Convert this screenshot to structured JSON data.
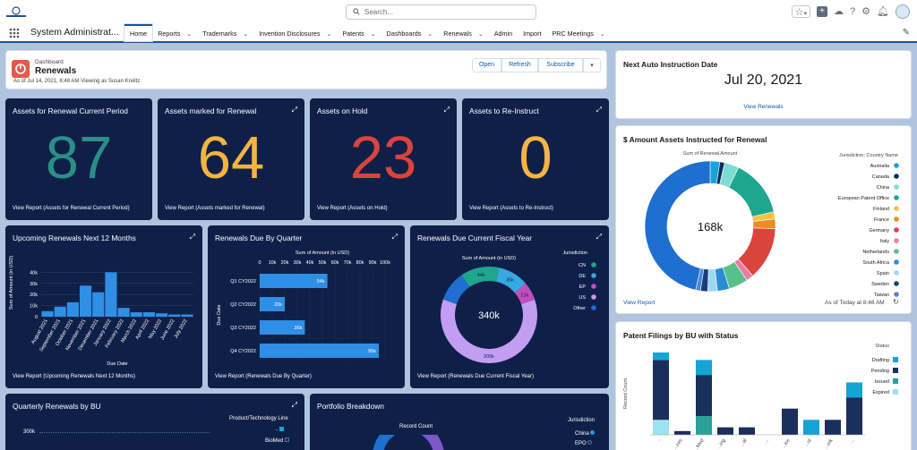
{
  "topbar": {
    "search_placeholder": "Search..."
  },
  "nav": {
    "app_name": "System Administrat...",
    "items": [
      {
        "label": "Home",
        "active": true,
        "chevron": false
      },
      {
        "label": "Reports",
        "chevron": true
      },
      {
        "label": "Trademarks",
        "chevron": true
      },
      {
        "label": "Invention Disclosures",
        "chevron": true
      },
      {
        "label": "Patents",
        "chevron": true
      },
      {
        "label": "Dashboards",
        "chevron": true
      },
      {
        "label": "Renewals",
        "chevron": true
      },
      {
        "label": "Admin",
        "chevron": false
      },
      {
        "label": "Import",
        "chevron": false
      },
      {
        "label": "PRC Meetings",
        "chevron": true
      }
    ]
  },
  "dashboard": {
    "type_label": "Dashboard",
    "title": "Renewals",
    "subtitle": "As of Jul 14, 2021, 8:48 AM·Viewing as Susan Kreiltz",
    "open": "Open",
    "refresh": "Refresh",
    "subscribe": "Subscribe"
  },
  "metrics": [
    {
      "title": "Assets for Renewal Current Period",
      "value": "87",
      "color": "#2a8f86",
      "link": "View Report (Assets for Renewal Current Period)"
    },
    {
      "title": "Assets marked for Renewal",
      "value": "64",
      "color": "#f5b342",
      "link": "View Report (Assets marked for Renewal)"
    },
    {
      "title": "Assets on Hold",
      "value": "23",
      "color": "#d9443d",
      "link": "View Report (Assets on Hold)"
    },
    {
      "title": "Assets to Re-Instruct",
      "value": "0",
      "color": "#f5b342",
      "link": "View Report (Assets to Re-Instruct)"
    }
  ],
  "next_auto": {
    "title": "Next Auto Instruction Date",
    "date": "Jul 20, 2021",
    "link": "View Renewals"
  },
  "amount_chart": {
    "title": "$ Amount Assets Instructed for Renewal",
    "link": "View Report",
    "asof": "As of Today at 8:48 AM"
  },
  "upcoming": {
    "title": "Upcoming Renewals Next 12 Months",
    "link": "View Report (Upcoming Renewals Next 12 Months)"
  },
  "by_quarter": {
    "title": "Renewals Due By Quarter",
    "link": "View Report (Renewals Due By Quarter)"
  },
  "fiscal": {
    "title": "Renewals Due Current Fiscal Year",
    "link": "View Report (Renewals Due Current Fiscal Year)"
  },
  "quarterly_bu": {
    "title": "Quarterly Renewals by BU",
    "legend_title": "Product/Technology Line",
    "legend": [
      "-",
      "BioMed"
    ],
    "y_top": "300k"
  },
  "portfolio": {
    "title": "Portfolio Breakdown",
    "subtitle": "Record Count",
    "legend_title": "Jurisdiction",
    "legend": [
      "China",
      "EPO"
    ]
  },
  "patent_filings": {
    "title": "Patent Filings by BU with Status"
  },
  "chart_data": [
    {
      "type": "bar",
      "title": "Upcoming Renewals Next 12 Months",
      "xlabel": "Due Date",
      "ylabel": "Sum of Amount (in USD)",
      "ylim": [
        0,
        50000
      ],
      "yticks": [
        "0",
        "10k",
        "20k",
        "30k",
        "40k"
      ],
      "categories": [
        "August 2021",
        "September 2021",
        "October 2021",
        "November 2021",
        "December 2021",
        "January 2022",
        "February 2022",
        "March 2022",
        "April 2022",
        "May 2022",
        "June 2022",
        "July 2022"
      ],
      "values": [
        5000,
        9000,
        13000,
        28000,
        22000,
        40000,
        8000,
        4000,
        4000,
        3000,
        2000,
        2000
      ]
    },
    {
      "type": "bar",
      "orientation": "horizontal",
      "title": "Renewals Due By Quarter",
      "xlabel": "Sum of Amount (in USD)",
      "ylabel": "Due Date",
      "xlim": [
        0,
        100000
      ],
      "xticks": [
        "0",
        "10k",
        "20k",
        "30k",
        "40k",
        "50k",
        "60k",
        "70k",
        "80k",
        "90k",
        "100k"
      ],
      "categories": [
        "Q1 CY2022",
        "Q2 CY2022",
        "Q3 CY2022",
        "Q4 CY2022"
      ],
      "values": [
        54000,
        20000,
        36000,
        95000
      ],
      "labels": [
        "54k",
        "20k",
        "36k",
        "95k"
      ]
    },
    {
      "type": "pie",
      "donut": true,
      "title": "Sum of Amount (in USD)",
      "center": "340k",
      "legend_title": "Jurisdiction",
      "slices": [
        {
          "name": "CN",
          "value": 44000,
          "label": "44k",
          "color": "#1ea68e"
        },
        {
          "name": "DE",
          "value": 35000,
          "label": "35k",
          "color": "#38a8e0"
        },
        {
          "name": "EP",
          "value": 21000,
          "label": "21k",
          "color": "#c04fbd"
        },
        {
          "name": "US",
          "value": 205000,
          "label": "205k",
          "color": "#c29ef2"
        },
        {
          "name": "Other",
          "value": 35000,
          "label": "",
          "color": "#1e6fd0"
        }
      ]
    },
    {
      "type": "pie",
      "donut": true,
      "title": "Sum of Renewal Amount",
      "center": "168k",
      "legend_title": "Jurisdiction: Country Name",
      "slices": [
        {
          "name": "Australia",
          "value": 4000,
          "color": "#16a3d6"
        },
        {
          "name": "Canada",
          "value": 2000,
          "color": "#0d2b5e"
        },
        {
          "name": "China",
          "value": 6000,
          "color": "#7edbd4"
        },
        {
          "name": "European Patent Office",
          "value": 24000,
          "color": "#1ea68e"
        },
        {
          "name": "Finland",
          "value": 3000,
          "color": "#f5c342"
        },
        {
          "name": "France",
          "value": 4000,
          "color": "#f08a24"
        },
        {
          "name": "Germany",
          "value": 22000,
          "color": "#d9443d"
        },
        {
          "name": "Italy",
          "value": 3000,
          "color": "#e67ea7"
        },
        {
          "name": "Netherlands",
          "value": 8000,
          "color": "#58c08d"
        },
        {
          "name": "South Africa",
          "value": 5000,
          "color": "#2b8cd6"
        },
        {
          "name": "Spain",
          "value": 4000,
          "color": "#9fd7f2"
        },
        {
          "name": "Sweden",
          "value": 3000,
          "color": "#1b3e7a"
        },
        {
          "name": "Taiwan",
          "value": 2000,
          "color": "#4e86d8"
        },
        {
          "name": "Other",
          "value": 78000,
          "color": "#1e6fd0"
        }
      ]
    },
    {
      "type": "bar",
      "stacked": true,
      "title": "Patent Filings by BU with Status",
      "ylabel": "Record Count",
      "legend_title": "Status",
      "series": [
        {
          "name": "Drafting",
          "color": "#16a3d6",
          "values": [
            2,
            0,
            4,
            0,
            0,
            0,
            0,
            4,
            0,
            4
          ]
        },
        {
          "name": "Pending",
          "color": "#1b2f5c",
          "values": [
            16,
            1,
            11,
            2,
            2,
            0,
            7,
            0,
            4,
            10
          ]
        },
        {
          "name": "Issued",
          "color": "#2aa198",
          "values": [
            0,
            0,
            5,
            0,
            0,
            0,
            0,
            0,
            0,
            0
          ]
        },
        {
          "name": "Expired",
          "color": "#9be3ef",
          "values": [
            4,
            0,
            0,
            0,
            0,
            0,
            0,
            0,
            0,
            0
          ]
        }
      ],
      "categories": [
        "-",
        "...ces",
        "...Med",
        "...ing",
        "...al",
        "...",
        "...ice",
        "...ut",
        "...ork",
        "..."
      ]
    }
  ]
}
